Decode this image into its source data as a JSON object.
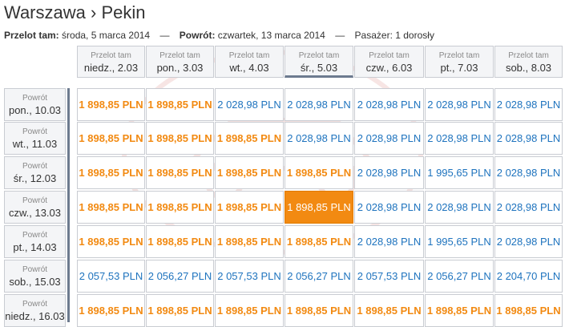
{
  "route": {
    "origin": "Warszawa",
    "sep": "›",
    "destination": "Pekin"
  },
  "trip": {
    "outbound_label": "Przelot tam:",
    "outbound_date": "środa, 5 marca 2014",
    "dash1": "—",
    "return_label": "Powrót:",
    "return_date": "czwartek, 13 marca 2014",
    "dash2": "—",
    "pax_label": "Pasażer:",
    "pax_value": "1 dorosły"
  },
  "colors": {
    "cheap": "#f28a12",
    "normal": "#1e73be",
    "selected_bg": "#f28a12"
  },
  "columns": [
    {
      "label": "Przelot tam",
      "date": "niedz., 2.03"
    },
    {
      "label": "Przelot tam",
      "date": "pon., 3.03"
    },
    {
      "label": "Przelot tam",
      "date": "wt., 4.03"
    },
    {
      "label": "Przelot tam",
      "date": "śr., 5.03"
    },
    {
      "label": "Przelot tam",
      "date": "czw., 6.03"
    },
    {
      "label": "Przelot tam",
      "date": "pt., 7.03"
    },
    {
      "label": "Przelot tam",
      "date": "sob., 8.03"
    }
  ],
  "selected_column": 3,
  "rows": [
    {
      "label": "Powrót",
      "date": "pon., 10.03",
      "prices": [
        "1 898,85 PLN",
        "1 898,85 PLN",
        "2 028,98 PLN",
        "2 028,98 PLN",
        "2 028,98 PLN",
        "2 028,98 PLN",
        "2 028,98 PLN"
      ],
      "cheap": [
        true,
        true,
        false,
        false,
        false,
        false,
        false
      ]
    },
    {
      "label": "Powrót",
      "date": "wt., 11.03",
      "prices": [
        "1 898,85 PLN",
        "1 898,85 PLN",
        "1 898,85 PLN",
        "2 028,98 PLN",
        "2 028,98 PLN",
        "2 028,98 PLN",
        "2 028,98 PLN"
      ],
      "cheap": [
        true,
        true,
        true,
        false,
        false,
        false,
        false
      ]
    },
    {
      "label": "Powrót",
      "date": "śr., 12.03",
      "prices": [
        "1 898,85 PLN",
        "1 898,85 PLN",
        "1 898,85 PLN",
        "1 898,85 PLN",
        "2 028,98 PLN",
        "1 995,65 PLN",
        "2 028,98 PLN"
      ],
      "cheap": [
        true,
        true,
        true,
        true,
        false,
        false,
        false
      ]
    },
    {
      "label": "Powrót",
      "date": "czw., 13.03",
      "prices": [
        "1 898,85 PLN",
        "1 898,85 PLN",
        "1 898,85 PLN",
        "1 898,85 PLN",
        "2 028,98 PLN",
        "2 028,98 PLN",
        "2 028,98 PLN"
      ],
      "cheap": [
        true,
        true,
        true,
        true,
        false,
        false,
        false
      ]
    },
    {
      "label": "Powrót",
      "date": "pt., 14.03",
      "prices": [
        "1 898,85 PLN",
        "1 898,85 PLN",
        "1 898,85 PLN",
        "1 898,85 PLN",
        "2 028,98 PLN",
        "1 995,65 PLN",
        "2 028,98 PLN"
      ],
      "cheap": [
        true,
        true,
        true,
        true,
        false,
        false,
        false
      ]
    },
    {
      "label": "Powrót",
      "date": "sob., 15.03",
      "prices": [
        "2 057,53 PLN",
        "2 056,27 PLN",
        "2 057,53 PLN",
        "2 056,27 PLN",
        "2 057,53 PLN",
        "2 056,27 PLN",
        "2 204,70 PLN"
      ],
      "cheap": [
        false,
        false,
        false,
        false,
        false,
        false,
        false
      ]
    },
    {
      "label": "Powrót",
      "date": "niedz., 16.03",
      "prices": [
        "1 898,85 PLN",
        "1 898,85 PLN",
        "1 898,85 PLN",
        "1 898,85 PLN",
        "1 898,85 PLN",
        "1 898,85 PLN",
        "1 898,85 PLN"
      ],
      "cheap": [
        true,
        true,
        true,
        true,
        true,
        true,
        true
      ]
    }
  ],
  "selected_cell": {
    "row": 3,
    "col": 3
  }
}
